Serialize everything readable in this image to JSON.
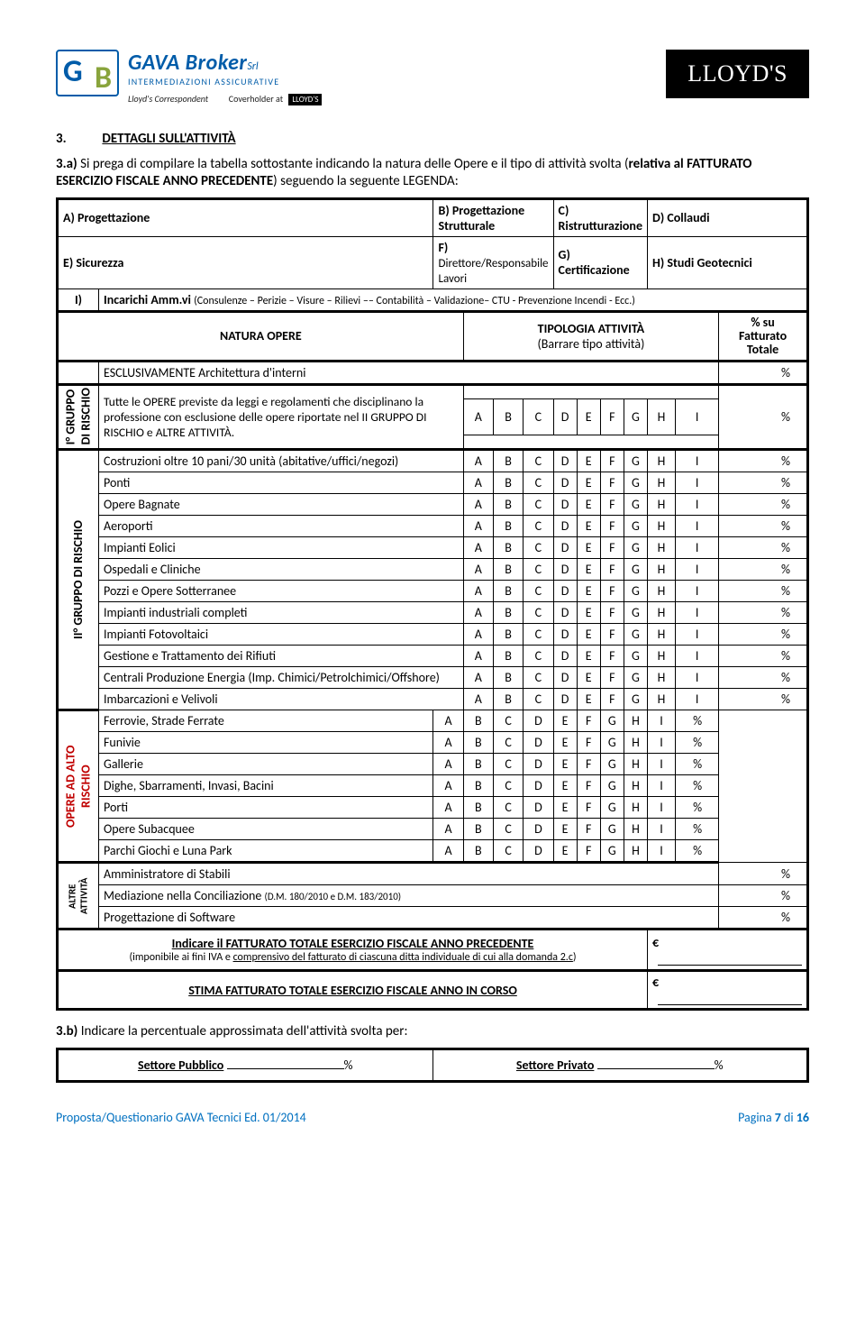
{
  "header": {
    "brand": "GAVA Broker",
    "brand_sub": "INTERMEDIAZIONI ASSICURATIVE",
    "lloyds_corr": "Lloyd's Correspondent",
    "coverholder": "Coverholder at",
    "coverholder_badge": "LLOYD'S",
    "lloyds": "LLOYD'S",
    "srl": "Srl"
  },
  "section": {
    "num": "3.",
    "title": "DETTAGLI SULL'ATTIVITÀ"
  },
  "intro": {
    "num": "3.a)",
    "text_a": "Si prega di compilare la tabella sottostante indicando la natura delle Opere e il tipo di attività svolta (",
    "text_b": "relativa al FATTURATO ESERCIZIO FISCALE  ANNO PRECEDENTE",
    "text_c": ") seguendo la seguente LEGENDA:"
  },
  "legend": {
    "A": {
      "k": "A) Progettazione",
      "B": "B) Progettazione Strutturale",
      "C": "C) Ristrutturazione",
      "D": "D) Collaudi"
    },
    "E": {
      "k": "E) Sicurezza",
      "F": "F) Direttore/Responsabile Lavori",
      "G": "G) Certificazione",
      "H": "H) Studi Geotecnici"
    },
    "I": {
      "k": "I)",
      "label": "Incarichi Amm.vi",
      "note": "(Consulenze – Perizie – Visure – Rilievi –– Contabilità – Validazione– CTU - Prevenzione Incendi - Ecc.)"
    }
  },
  "hdr": {
    "natura": "NATURA OPERE",
    "tip": "TIPOLOGIA ATTIVITÀ",
    "tip2": "(Barrare tipo attività)",
    "su": "% su",
    "su2": "Fatturato",
    "su3": "Totale"
  },
  "rows": {
    "escl": "ESCLUSIVAMENTE Architettura d'interni",
    "g1_label": "I° GRUPPO\nDI RISCHIO",
    "g1": "Tutte le OPERE previste da leggi e regolamenti che disciplinano la professione con esclusione delle opere riportate nel II GRUPPO DI RISCHIO e ALTRE ATTIVITÀ.",
    "g2_label": "II° GRUPPO DI RISCHIO",
    "alto_label": "OPERE AD ALTO\nRISCHIO",
    "altre_label": "ALTRE\nATTIVITÀ",
    "g2": [
      "Costruzioni oltre 10 pani/30 unità (abitative/uffici/negozi)",
      "Ponti",
      "Opere Bagnate",
      "Aeroporti",
      "Impianti Eolici",
      "Ospedali e Cliniche",
      "Pozzi e Opere Sotterranee",
      "Impianti industriali completi",
      "Impianti Fotovoltaici",
      "Gestione e Trattamento dei Rifiuti",
      "Centrali Produzione Energia (Imp. Chimici/Petrolchimici/Offshore)",
      "Imbarcazioni e Velivoli"
    ],
    "alto": [
      "Ferrovie, Strade Ferrate",
      "Funivie",
      "Gallerie",
      "Dighe, Sbarramenti, Invasi, Bacini",
      "Porti",
      "Opere Subacquee",
      "Parchi Giochi e Luna Park"
    ],
    "altre": [
      "Amministratore di Stabili",
      "Mediazione nella Conciliazione (D.M. 180/2010 e D.M. 183/2010)",
      "Progettazione di Software"
    ]
  },
  "cols": [
    "A",
    "B",
    "C",
    "D",
    "E",
    "F",
    "G",
    "H",
    "I"
  ],
  "fatturato": {
    "line1": "Indicare il FATTURATO TOTALE ESERCIZIO FISCALE ANNO PRECEDENTE",
    "line2": "(imponibile ai fini IVA e comprensivo del fatturato di ciascuna ditta individuale di cui alla domanda 2.c)",
    "stima": "STIMA FATTURATO TOTALE ESERCIZIO FISCALE ANNO IN CORSO",
    "euro": "€"
  },
  "q3b": {
    "num": "3.b)",
    "text": "Indicare la percentuale approssimata dell'attività svolta per:",
    "pub": "Settore Pubblico",
    "priv": "Settore Privato",
    "pct": "%"
  },
  "footer": {
    "left": "Proposta/Questionario GAVA Tecnici  Ed. 01/2014",
    "right": "Pagina 7 di 16"
  },
  "pct": "%",
  "colors": {
    "blue": "#005ca9",
    "red": "#c00000"
  }
}
